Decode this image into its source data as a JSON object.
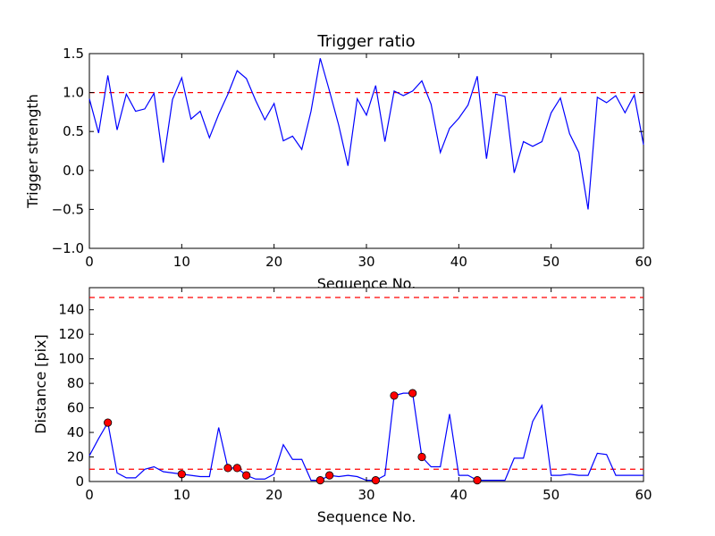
{
  "chart_data": [
    {
      "type": "line",
      "title": "Trigger ratio",
      "xlabel": "Sequence No.",
      "ylabel": "Trigger strength",
      "xlim": [
        0,
        60
      ],
      "ylim": [
        -1.0,
        1.5
      ],
      "xticks": [
        0,
        10,
        20,
        30,
        40,
        50,
        60
      ],
      "yticks": [
        -1.0,
        -0.5,
        0.0,
        0.5,
        1.0,
        1.5
      ],
      "ytick_labels": [
        "−1.0",
        "−0.5",
        "0.0",
        "0.5",
        "1.0",
        "1.5"
      ],
      "grid": false,
      "threshold": {
        "y": 1.0,
        "color": "#ff0000",
        "style": "dashed"
      },
      "series": [
        {
          "color": "#0000ff",
          "x": [
            0,
            1,
            2,
            3,
            4,
            5,
            6,
            7,
            8,
            9,
            10,
            11,
            12,
            13,
            14,
            15,
            16,
            17,
            18,
            19,
            20,
            21,
            22,
            23,
            24,
            25,
            26,
            27,
            28,
            29,
            30,
            31,
            32,
            33,
            34,
            35,
            36,
            37,
            38,
            39,
            40,
            41,
            42,
            43,
            44,
            45,
            46,
            47,
            48,
            49,
            50,
            51,
            52,
            53,
            54,
            55,
            56,
            57,
            58,
            59,
            60
          ],
          "y": [
            0.92,
            0.48,
            1.22,
            0.52,
            0.98,
            0.76,
            0.79,
            0.99,
            0.1,
            0.91,
            1.19,
            0.66,
            0.76,
            0.42,
            0.72,
            0.98,
            1.28,
            1.18,
            0.9,
            0.65,
            0.86,
            0.38,
            0.44,
            0.27,
            0.76,
            1.44,
            1.02,
            0.58,
            0.06,
            0.92,
            0.71,
            1.09,
            0.37,
            1.02,
            0.96,
            1.02,
            1.15,
            0.85,
            0.23,
            0.54,
            0.67,
            0.84,
            1.21,
            0.15,
            0.98,
            0.95,
            -0.03,
            0.37,
            0.31,
            0.37,
            0.74,
            0.93,
            0.47,
            0.23,
            -0.5,
            0.94,
            0.87,
            0.96,
            0.74,
            0.97,
            0.33
          ]
        }
      ]
    },
    {
      "type": "line",
      "title": "",
      "xlabel": "Sequence No.",
      "ylabel": "Distance [pix]",
      "xlim": [
        0,
        60
      ],
      "ylim": [
        0,
        158
      ],
      "xticks": [
        0,
        10,
        20,
        30,
        40,
        50,
        60
      ],
      "yticks": [
        0,
        20,
        40,
        60,
        80,
        100,
        120,
        140
      ],
      "grid": false,
      "thresholds": [
        {
          "y": 150,
          "color": "#ff0000",
          "style": "dashed"
        },
        {
          "y": 10,
          "color": "#ff0000",
          "style": "dashed"
        }
      ],
      "series": [
        {
          "color": "#0000ff",
          "x": [
            0,
            1,
            2,
            3,
            4,
            5,
            6,
            7,
            8,
            9,
            10,
            11,
            12,
            13,
            14,
            15,
            16,
            17,
            18,
            19,
            20,
            21,
            22,
            23,
            24,
            25,
            26,
            27,
            28,
            29,
            30,
            31,
            32,
            33,
            34,
            35,
            36,
            37,
            38,
            39,
            40,
            41,
            42,
            43,
            44,
            45,
            46,
            47,
            48,
            49,
            50,
            51,
            52,
            53,
            54,
            55,
            56,
            57,
            58,
            59,
            60
          ],
          "y": [
            21,
            35,
            48,
            7,
            3,
            3,
            10,
            12,
            8,
            7,
            6,
            5,
            4,
            4,
            44,
            11,
            11,
            5,
            2,
            2,
            6,
            30,
            18,
            18,
            1,
            1,
            5,
            4,
            5,
            4,
            1,
            1,
            5,
            70,
            72,
            72,
            20,
            12,
            12,
            55,
            5,
            5,
            1,
            1,
            1,
            1,
            19,
            19,
            49,
            62,
            5,
            5,
            6,
            5,
            5,
            23,
            22,
            5,
            5,
            5,
            5
          ]
        },
        {
          "marker": "circle",
          "color": "#ff0000",
          "x": [
            2,
            10,
            15,
            16,
            17,
            25,
            26,
            31,
            33,
            35,
            36,
            42
          ],
          "y": [
            48,
            6,
            11,
            11,
            5,
            1,
            5,
            1,
            70,
            72,
            20,
            1
          ]
        }
      ]
    }
  ]
}
